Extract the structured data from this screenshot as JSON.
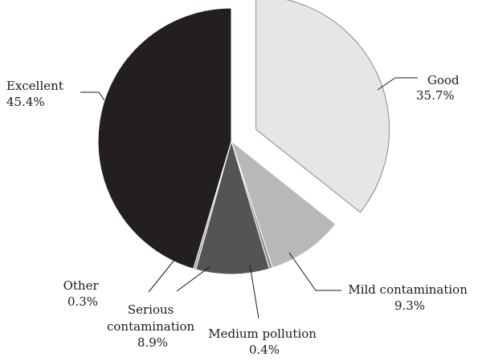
{
  "chart_data": {
    "type": "pie",
    "title": "",
    "start_angle_deg": 0,
    "direction": "clockwise",
    "slices": [
      {
        "name": "Good",
        "value": 35.7,
        "label_value": "35.7%",
        "color": "#e6e6e6",
        "stroke": "#8a8a8a",
        "exploded": true
      },
      {
        "name": "Mild contamination",
        "value": 9.3,
        "label_value": "9.3%",
        "color": "#b7b8ba",
        "stroke": "#ffffff",
        "exploded": false
      },
      {
        "name": "Medium pollution",
        "value": 0.4,
        "label_value": "0.4%",
        "color": "#8f8f8f",
        "stroke": "#ffffff",
        "exploded": false
      },
      {
        "name": "Serious contamination",
        "value": 8.9,
        "label_value": "8.9%",
        "color": "#545454",
        "stroke": "#ffffff",
        "exploded": false
      },
      {
        "name": "Other",
        "value": 0.3,
        "label_value": "0.3%",
        "color": "#9a9a9a",
        "stroke": "#ffffff",
        "exploded": false
      },
      {
        "name": "Excellent",
        "value": 45.4,
        "label_value": "45.4%",
        "color": "#231f20",
        "stroke": "#ffffff",
        "exploded": false
      }
    ]
  },
  "labels": {
    "good": {
      "line1": "Good",
      "line2": "35.7%"
    },
    "mild": {
      "line1": "Mild contamination",
      "line2": "9.3%"
    },
    "medium": {
      "line1": "Medium pollution",
      "line2": "0.4%"
    },
    "serious": {
      "line1": "Serious",
      "line2": "contamination",
      "line3": "8.9%"
    },
    "other": {
      "line1": "Other",
      "line2": "0.3%"
    },
    "excellent": {
      "line1": "Excellent",
      "line2": "45.4%"
    }
  }
}
